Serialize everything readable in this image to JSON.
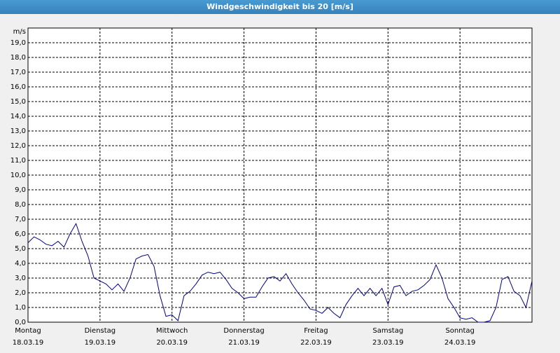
{
  "chart_data": {
    "type": "line",
    "title": "Windgeschwindigkeit bis 20 [m/s]",
    "y_unit": "m/s",
    "values": [
      5.4,
      5.8,
      5.6,
      5.3,
      5.2,
      5.5,
      5.1,
      6.0,
      6.7,
      5.5,
      4.5,
      3.0,
      2.8,
      2.6,
      2.2,
      2.6,
      2.1,
      3.0,
      4.3,
      4.5,
      4.6,
      3.8,
      1.8,
      0.4,
      0.5,
      0.1,
      1.8,
      2.1,
      2.6,
      3.2,
      3.4,
      3.3,
      3.4,
      2.9,
      2.3,
      2.0,
      1.6,
      1.7,
      1.7,
      2.4,
      3.0,
      3.1,
      2.8,
      3.3,
      2.6,
      2.0,
      1.5,
      0.9,
      0.8,
      0.6,
      1.0,
      0.6,
      0.3,
      1.2,
      1.8,
      2.3,
      1.8,
      2.3,
      1.8,
      2.3,
      1.2,
      2.4,
      2.5,
      1.8,
      2.1,
      2.2,
      2.5,
      2.9,
      3.9,
      3.0,
      1.6,
      1.0,
      0.3,
      0.2,
      0.3,
      0.0,
      0.0,
      0.1,
      1.0,
      2.9,
      3.1,
      2.1,
      1.8,
      1.0,
      2.8
    ],
    "color": "#00008b",
    "xlim": [
      0,
      84
    ],
    "xticks": [
      {
        "value": 0,
        "label": "Montag"
      },
      {
        "value": 12,
        "label": "Dienstag"
      },
      {
        "value": 24,
        "label": "Mittwoch"
      },
      {
        "value": 36,
        "label": "Donnerstag"
      },
      {
        "value": 48,
        "label": "Freitag"
      },
      {
        "value": 60,
        "label": "Samstag"
      },
      {
        "value": 72,
        "label": "Sonntag"
      }
    ],
    "xtick_dates": [
      "18.03.19",
      "19.03.19",
      "20.03.19",
      "21.03.19",
      "22.03.19",
      "23.03.19",
      "24.03.19"
    ],
    "ylim": [
      0,
      20
    ],
    "yticks": [
      {
        "value": 0,
        "label": "0,0"
      },
      {
        "value": 1,
        "label": "1,0"
      },
      {
        "value": 2,
        "label": "2,0"
      },
      {
        "value": 3,
        "label": "3,0"
      },
      {
        "value": 4,
        "label": "4,0"
      },
      {
        "value": 5,
        "label": "5,0"
      },
      {
        "value": 6,
        "label": "6,0"
      },
      {
        "value": 7,
        "label": "7,0"
      },
      {
        "value": 8,
        "label": "8,0"
      },
      {
        "value": 9,
        "label": "9,0"
      },
      {
        "value": 10,
        "label": "10,0"
      },
      {
        "value": 11,
        "label": "11,0"
      },
      {
        "value": 12,
        "label": "12,0"
      },
      {
        "value": 13,
        "label": "13,0"
      },
      {
        "value": 14,
        "label": "14,0"
      },
      {
        "value": 15,
        "label": "15,0"
      },
      {
        "value": 16,
        "label": "16,0"
      },
      {
        "value": 17,
        "label": "17,0"
      },
      {
        "value": 18,
        "label": "18,0"
      },
      {
        "value": 19,
        "label": "19,0"
      }
    ],
    "grid": true
  }
}
